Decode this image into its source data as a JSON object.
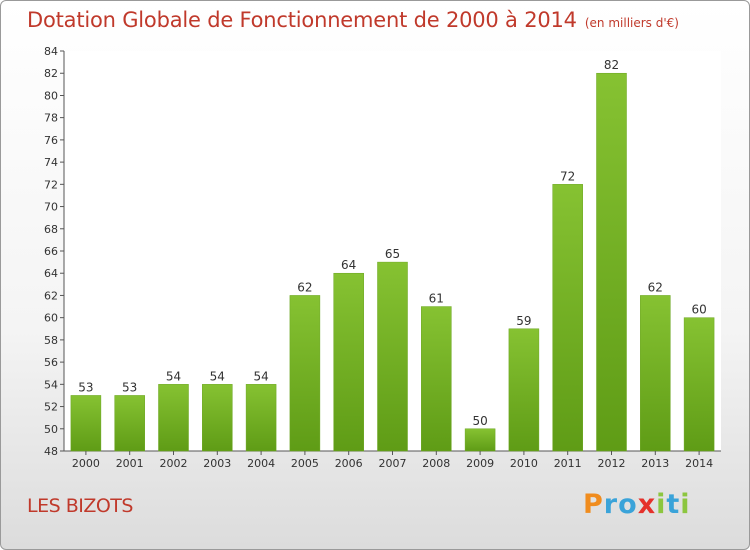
{
  "chart_data": {
    "type": "bar",
    "title": "Dotation Globale de Fonctionnement de 2000 à 2014",
    "unit_note": "(en milliers d'€)",
    "categories": [
      "2000",
      "2001",
      "2002",
      "2003",
      "2004",
      "2005",
      "2006",
      "2007",
      "2008",
      "2009",
      "2010",
      "2011",
      "2012",
      "2013",
      "2014"
    ],
    "values": [
      53,
      53,
      54,
      54,
      54,
      62,
      64,
      65,
      61,
      50,
      59,
      72,
      82,
      62,
      60
    ],
    "ylim": [
      48,
      84
    ],
    "yticks": [
      48,
      50,
      52,
      54,
      56,
      58,
      60,
      62,
      64,
      66,
      68,
      70,
      72,
      74,
      76,
      78,
      80,
      82,
      84
    ],
    "grid": false,
    "bar_color": "#86c232",
    "bar_color_dark": "#5f9c16"
  },
  "location_label": "LES BIZOTS",
  "brand": {
    "letters": [
      "P",
      "r",
      "o",
      "x",
      "i",
      "t",
      "i"
    ],
    "colors": [
      "#f08c1e",
      "#3aa3d9",
      "#3aa3d9",
      "#e5312b",
      "#8cc63f",
      "#3aa3d9",
      "#8cc63f"
    ]
  }
}
